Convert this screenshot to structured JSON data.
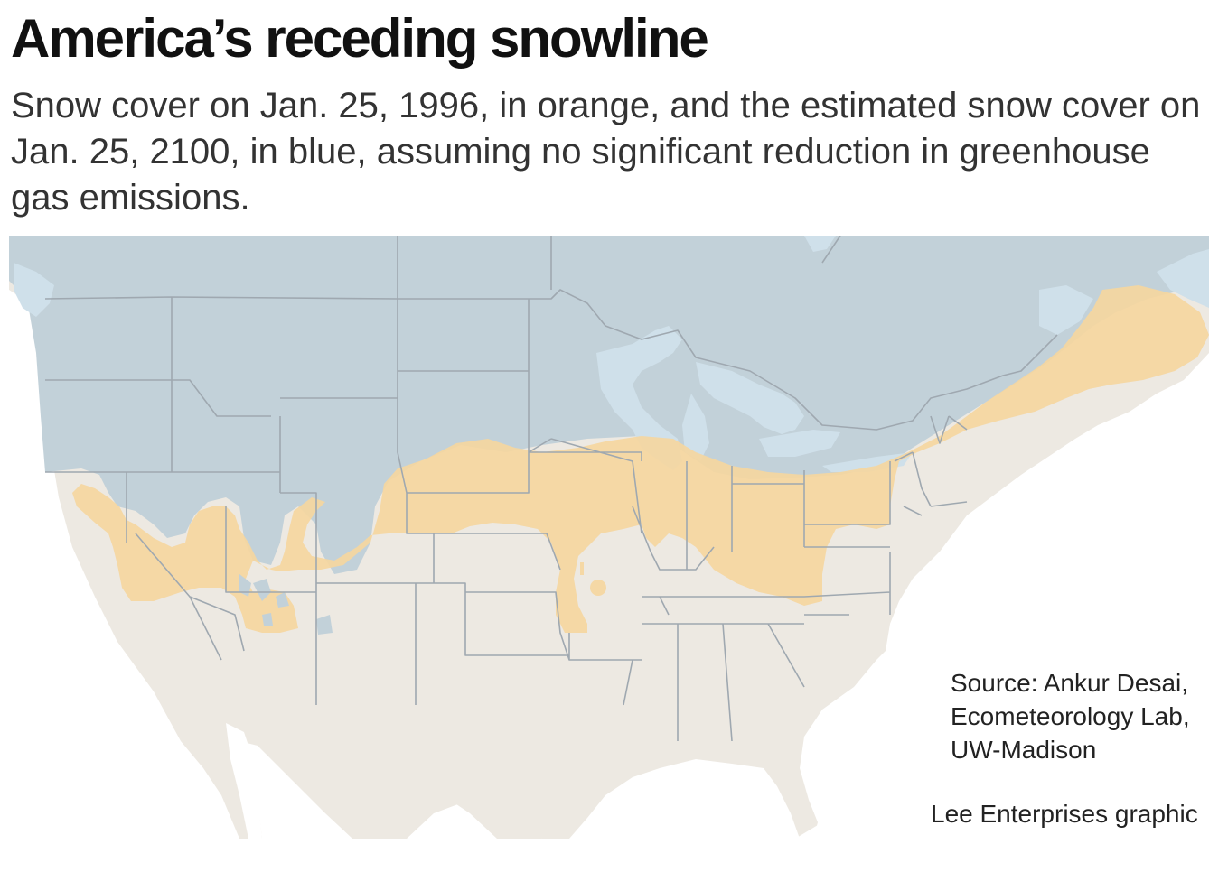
{
  "header": {
    "title": "America’s receding snowline",
    "subtitle": "Snow cover on Jan. 25, 1996, in orange, and the estimated snow cover on Jan. 25, 2100, in blue, assuming no significant reduction in greenhouse gas emissions."
  },
  "legend_colors": {
    "snow_1996": "#f5d6a0",
    "snow_2100": "#c2d1d9",
    "land": "#ede9e2",
    "water": "#cfe0ea",
    "state_lines": "#9fa8b0"
  },
  "footer": {
    "source": "Source: Ankur Desai,\nEcometeorology Lab,\nUW-Madison",
    "credit": "Lee Enterprises graphic"
  }
}
